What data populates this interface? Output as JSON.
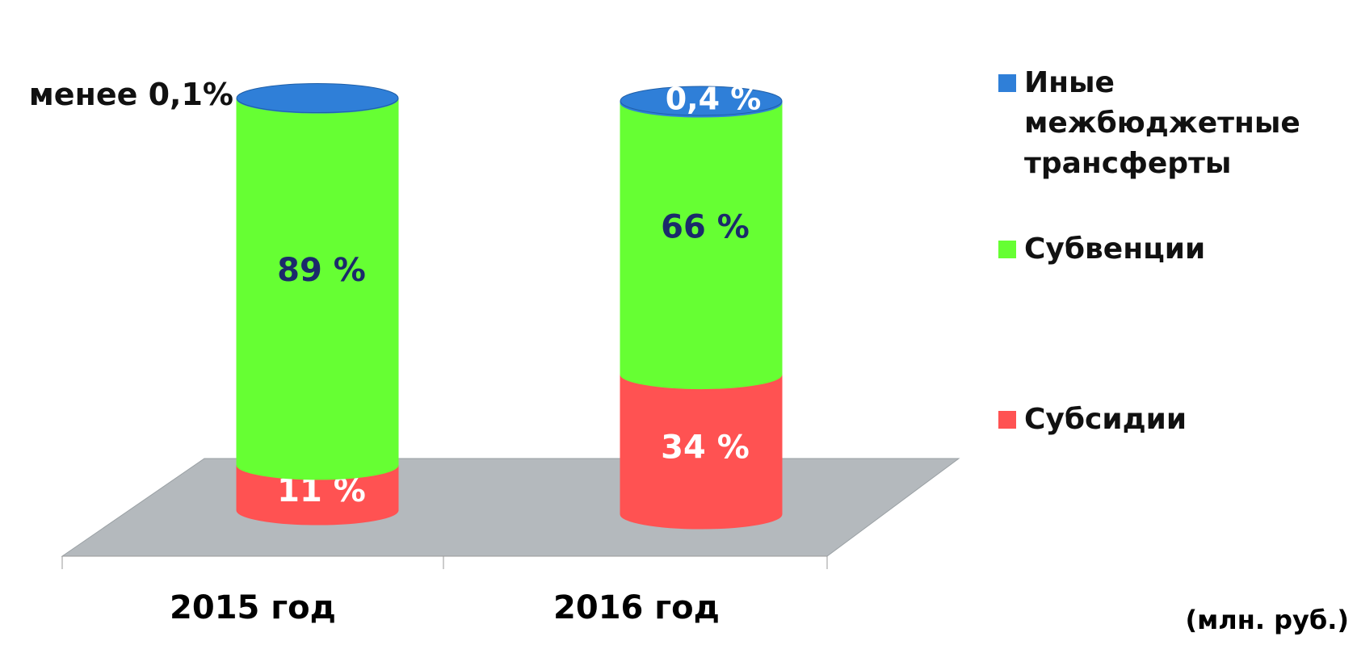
{
  "chart_data": {
    "type": "bar3d_stacked",
    "categories": [
      "2015 год",
      "2016 год"
    ],
    "series": [
      {
        "name": "Субсидии",
        "color": "#ff5252",
        "label_color": "#ffffff",
        "values": [
          11,
          34
        ],
        "value_labels": [
          "11 %",
          "34 %"
        ]
      },
      {
        "name": "Субвенции",
        "color": "#66ff33",
        "label_color": "#1b2a6b",
        "values": [
          89,
          66
        ],
        "value_labels": [
          "89 %",
          "66 %"
        ]
      },
      {
        "name": "Иные межбюджетные трансферты",
        "color": "#2f7fd8",
        "label_color": "#ffffff",
        "values": [
          0.1,
          0.4
        ],
        "value_labels": [
          "менее 0,1%",
          "0,4 %"
        ]
      }
    ],
    "annotation": "(млн. руб.)",
    "legend": "right"
  }
}
